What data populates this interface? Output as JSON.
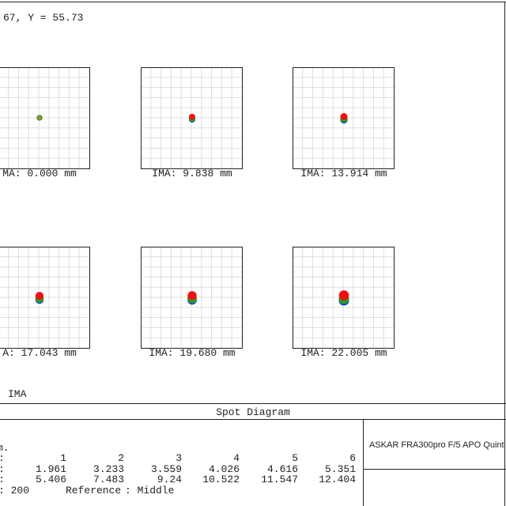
{
  "header": {
    "coords": "67, Y = 55.73"
  },
  "fields": [
    {
      "label": "MA: 0.000 mm"
    },
    {
      "label": "IMA: 9.838 mm"
    },
    {
      "label": "IMA: 13.914 mm"
    },
    {
      "label": "A: 17.043 mm"
    },
    {
      "label": "IMA: 19.680 mm"
    },
    {
      "label": "IMA: 22.005 mm"
    }
  ],
  "surface": "IMA",
  "footer": {
    "title": "Spot Diagram",
    "units": "m.",
    "rows": [
      [
        ":",
        1,
        2,
        3,
        4,
        5,
        6
      ],
      [
        ":",
        1.961,
        3.233,
        3.559,
        4.026,
        4.616,
        5.351
      ],
      [
        ":",
        5.406,
        7.483,
        9.24,
        10.522,
        11.547,
        12.404
      ]
    ],
    "last_row": [
      ": 200",
      "Reference",
      ": Middle"
    ],
    "lens": "ASKAR FRA300pro F/5 APO Quint"
  }
}
